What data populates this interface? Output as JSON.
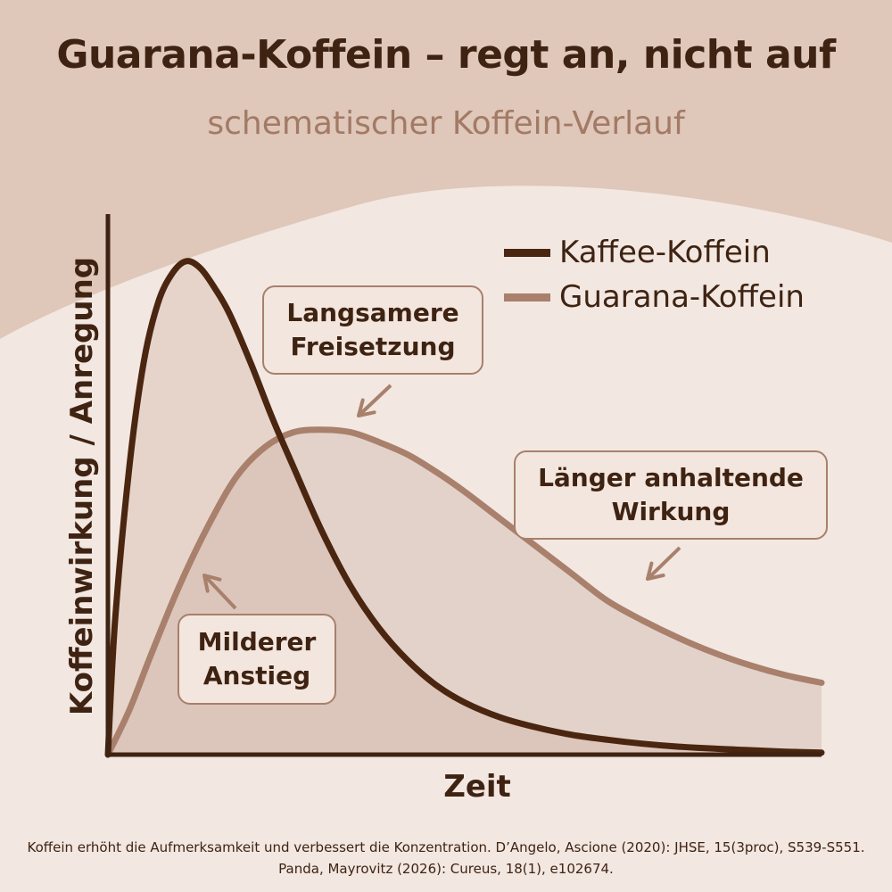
{
  "header": {
    "title": "Guarana-Koffein – regt an, nicht auf",
    "subtitle": "schematischer Koffein-Verlauf"
  },
  "chart_data": {
    "type": "line",
    "xlabel": "Zeit",
    "ylabel": "Koffeinwirkung / Anregung",
    "xlim": [
      0,
      100
    ],
    "ylim": [
      0,
      100
    ],
    "grid": false,
    "legend_position": "top-right",
    "series": [
      {
        "name": "Kaffee-Koffein",
        "color": "#4a2611",
        "x": [
          0,
          1,
          3,
          5,
          7,
          9,
          11,
          13,
          15,
          17,
          20,
          23,
          26,
          30,
          34,
          38,
          42,
          46,
          50,
          55,
          60,
          65,
          70,
          75,
          80,
          85,
          90,
          95,
          100
        ],
        "y": [
          0,
          27,
          58,
          79,
          91,
          97,
          99.5,
          98,
          94,
          89,
          79,
          68,
          58,
          45,
          34,
          25.5,
          19,
          14,
          10.5,
          7.5,
          5.5,
          4,
          3,
          2.2,
          1.6,
          1.2,
          0.9,
          0.6,
          0.4
        ]
      },
      {
        "name": "Guarana-Koffein",
        "color": "#a8806c",
        "x": [
          0,
          3,
          6,
          10,
          14,
          18,
          22,
          26,
          30,
          34,
          38,
          42,
          46,
          50,
          55,
          60,
          65,
          70,
          75,
          80,
          85,
          90,
          95,
          100
        ],
        "y": [
          0,
          9,
          20,
          34,
          46,
          56,
          62,
          65,
          65.5,
          65,
          63,
          60.5,
          57,
          53,
          47.5,
          42,
          36.5,
          31,
          27,
          23.5,
          20.5,
          18,
          16,
          14.5
        ]
      }
    ],
    "annotations": [
      {
        "line1": "Langsamere",
        "line2": "Freisetzung"
      },
      {
        "line1": "Länger anhaltende",
        "line2": "Wirkung"
      },
      {
        "line1": "Milderer",
        "line2": "Anstieg"
      }
    ]
  },
  "footnote": {
    "line1": "Koffein erhöht die Aufmerksamkeit und verbessert die Konzentration. D’Angelo, Ascione (2020): JHSE, 15(3proc), S539-S551.",
    "line2": "Panda, Mayrovitz (2026): Cureus, 18(1), e102674."
  }
}
